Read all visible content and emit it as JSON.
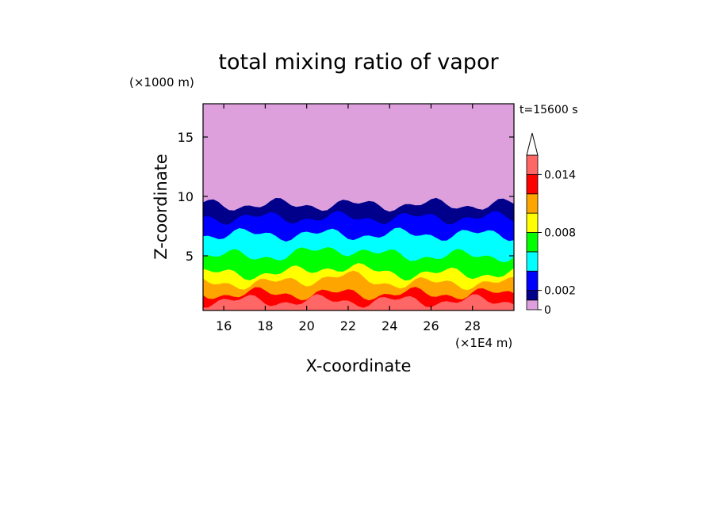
{
  "chart_data": {
    "type": "heatmap",
    "title": "total mixing ratio of vapor",
    "xlabel": "X-coordinate",
    "ylabel": "Z-coordinate",
    "x_unit": "(×1E4 m)",
    "y_unit": "(×1000 m)",
    "time_label": "t=15600 s",
    "xlim": [
      15,
      30
    ],
    "ylim": [
      0.4,
      17.8
    ],
    "x_ticks": [
      "16",
      "18",
      "20",
      "22",
      "24",
      "26",
      "28"
    ],
    "y_ticks": [
      "5",
      "10",
      "15"
    ],
    "colorbar": {
      "levels": [
        0,
        0.001,
        0.002,
        0.004,
        0.006,
        0.008,
        0.01,
        0.012,
        0.014,
        0.016
      ],
      "tick_labels": [
        "0",
        "0.002",
        "0.008",
        "0.014"
      ],
      "colors": [
        "#dda0dd",
        "#00008b",
        "#0000ff",
        "#00ffff",
        "#00ff00",
        "#ffff00",
        "#ffa500",
        "#ff0000",
        "#ff6666",
        "#ffb6b6"
      ],
      "extend": "max"
    },
    "layers": [
      {
        "value_range": "0-0.001",
        "z_top_km": 17.8,
        "color": "#dda0dd"
      },
      {
        "value_range": "0.001-0.002",
        "z_top_km": 9.3,
        "color": "#00008b"
      },
      {
        "value_range": "0.002-0.004",
        "z_top_km": 8.2,
        "color": "#0000ff"
      },
      {
        "value_range": "0.004-0.006",
        "z_top_km": 6.8,
        "color": "#00ffff"
      },
      {
        "value_range": "0.006-0.008",
        "z_top_km": 5.0,
        "color": "#00ff00"
      },
      {
        "value_range": "0.008-0.010",
        "z_top_km": 3.5,
        "color": "#ffff00"
      },
      {
        "value_range": "0.010-0.012",
        "z_top_km": 2.7,
        "color": "#ffa500"
      },
      {
        "value_range": "0.012-0.014",
        "z_top_km": 1.8,
        "color": "#ff0000"
      },
      {
        "value_range": "0.014-0.016",
        "z_top_km": 1.2,
        "color": "#ff6666"
      }
    ]
  }
}
